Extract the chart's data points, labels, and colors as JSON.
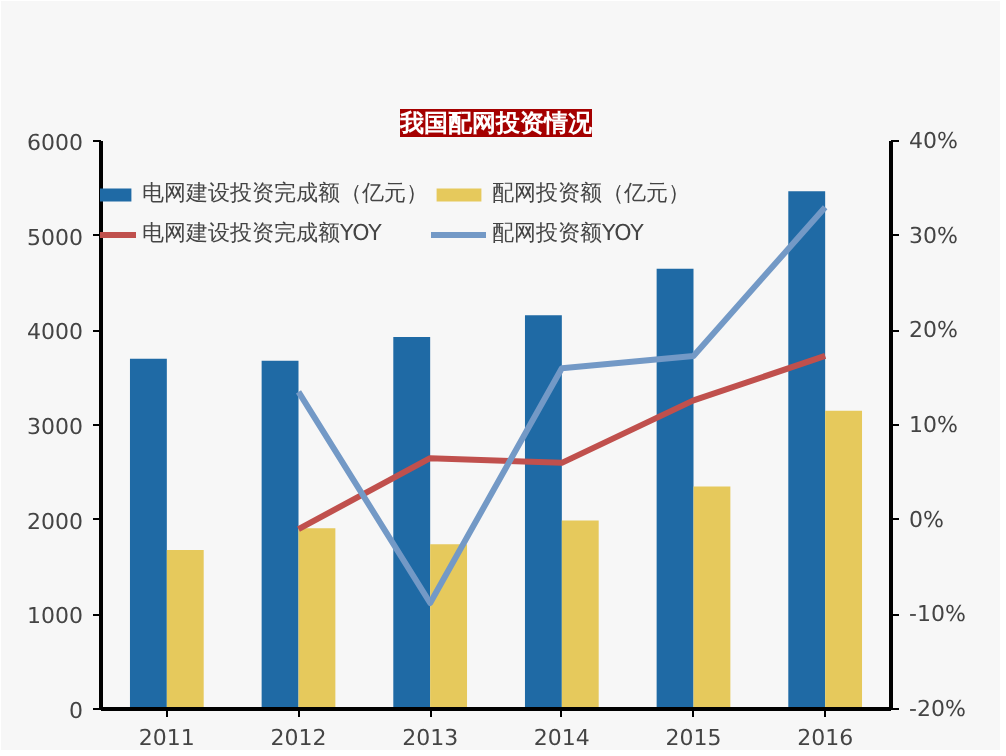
{
  "chart_data": {
    "type": "bar",
    "title": "我国配网投资情况",
    "categories": [
      "2011",
      "2012",
      "2013",
      "2014",
      "2015",
      "2016"
    ],
    "series": [
      {
        "name": "电网建设投资完成额（亿元）",
        "color": "#1f6aa5",
        "values": [
          3700,
          3680,
          3930,
          4160,
          4650,
          5470
        ]
      },
      {
        "name": "配网投资额（亿元）",
        "color": "#e6c95c",
        "values": [
          1680,
          1910,
          1740,
          1990,
          2350,
          3150
        ]
      },
      {
        "name": "电网建设投资完成额YOY",
        "type": "line",
        "axis": "y2",
        "color": "#c0504d",
        "values": [
          null,
          -1,
          6.5,
          6,
          12.6,
          17.3
        ]
      },
      {
        "name": "配网投资额YOY",
        "type": "line",
        "axis": "y2",
        "color": "#7399c6",
        "values": [
          null,
          13.5,
          -8.8,
          16,
          17.3,
          33
        ]
      }
    ],
    "ylim": [
      0,
      6000
    ],
    "yticks": [
      0,
      1000,
      2000,
      3000,
      4000,
      5000,
      6000
    ],
    "y2lim": [
      -20,
      40
    ],
    "y2ticks": [
      {
        "value": -20,
        "label": "-20%"
      },
      {
        "value": -10,
        "label": "-10%"
      },
      {
        "value": 0,
        "label": "0%"
      },
      {
        "value": 10,
        "label": "10%"
      },
      {
        "value": 20,
        "label": "20%"
      },
      {
        "value": 30,
        "label": "30%"
      },
      {
        "value": 40,
        "label": "40%"
      }
    ],
    "grid": false,
    "legend": "top",
    "marker": "none",
    "line_style": "solid"
  }
}
